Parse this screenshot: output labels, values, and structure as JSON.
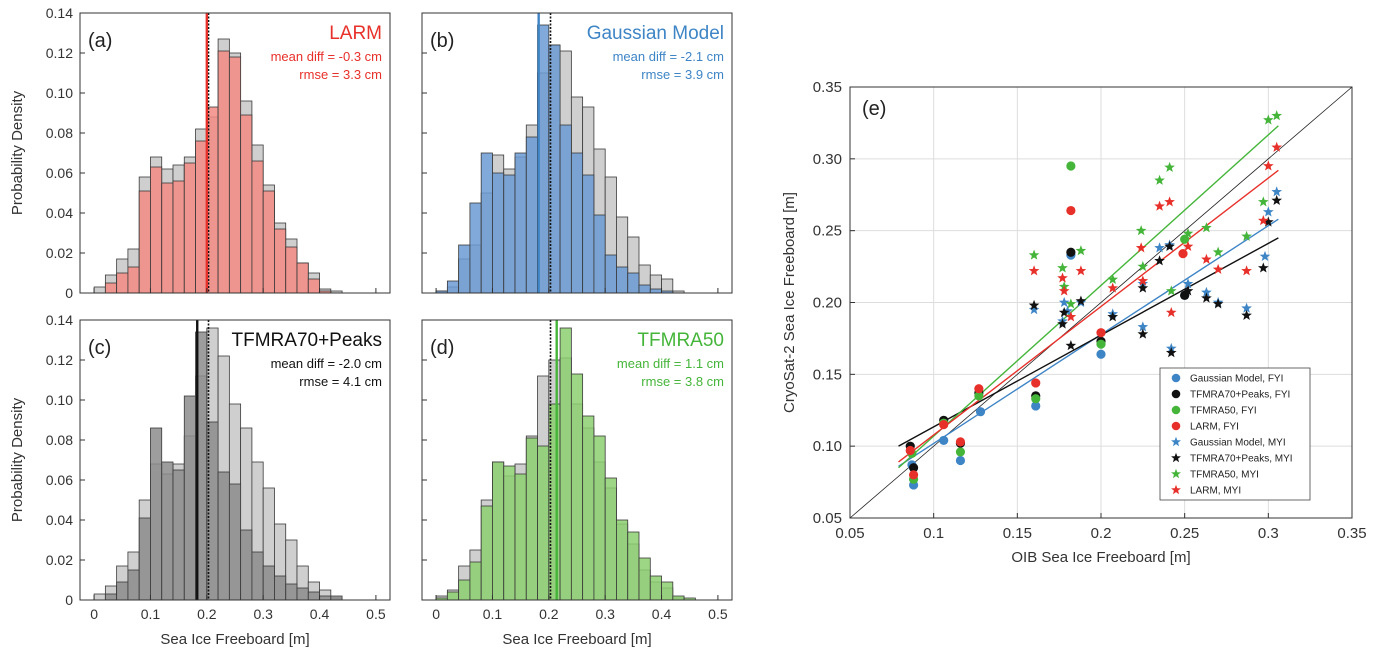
{
  "colors": {
    "red": "#e8302a",
    "red_fill": "#f28b82",
    "blue": "#3e85c6",
    "blue_fill": "#6b9bd4",
    "black": "#111111",
    "black_fill": "#8c8c8c",
    "green": "#45b53a",
    "green_fill": "#8ccf6e",
    "ref_fill": "#cfcfcf",
    "axis": "#333333",
    "grid": "#dddddd"
  },
  "chart_data": [
    {
      "id": "a",
      "type": "bar",
      "panel_label": "(a)",
      "method": "LARM",
      "mean_diff": "mean diff = -0.3 cm",
      "rmse": "rmse = 3.3 cm",
      "ylabel": "Probability Density",
      "xlabel": "",
      "xlim": [
        -0.025,
        0.525
      ],
      "ylim": [
        0,
        0.14
      ],
      "xticks": [
        "",
        "",
        "",
        "",
        "",
        ""
      ],
      "yticks": [
        "0",
        "0.02",
        "0.04",
        "0.06",
        "0.08",
        "0.10",
        "0.12",
        "0.14"
      ],
      "bin_edges": [
        0,
        0.02,
        0.04,
        0.06,
        0.08,
        0.1,
        0.12,
        0.14,
        0.16,
        0.18,
        0.2,
        0.22,
        0.24,
        0.26,
        0.28,
        0.3,
        0.32,
        0.34,
        0.36,
        0.38,
        0.4,
        0.42,
        0.44,
        0.46,
        0.48,
        0.5
      ],
      "reference_values": [
        0.003,
        0.009,
        0.017,
        0.022,
        0.058,
        0.068,
        0.062,
        0.064,
        0.068,
        0.082,
        0.088,
        0.127,
        0.12,
        0.096,
        0.074,
        0.054,
        0.035,
        0.027,
        0.015,
        0.01,
        0.002,
        0.001,
        0,
        0,
        0
      ],
      "method_values": [
        0,
        0.005,
        0.01,
        0.013,
        0.051,
        0.063,
        0.055,
        0.056,
        0.065,
        0.076,
        0.093,
        0.121,
        0.118,
        0.089,
        0.066,
        0.051,
        0.032,
        0.023,
        0.015,
        0.007,
        0.001,
        0,
        0,
        0,
        0
      ],
      "reference_mean": 0.203,
      "method_mean": 0.2,
      "color_key": "red",
      "fill_key": "red_fill"
    },
    {
      "id": "b",
      "type": "bar",
      "panel_label": "(b)",
      "method": "Gaussian Model",
      "mean_diff": "mean diff = -2.1 cm",
      "rmse": "rmse = 3.9 cm",
      "ylabel": "",
      "xlabel": "",
      "xlim": [
        -0.025,
        0.525
      ],
      "ylim": [
        0,
        0.14
      ],
      "xticks": [
        "",
        "",
        "",
        "",
        "",
        ""
      ],
      "yticks": [
        "",
        "",
        "",
        "",
        "",
        "",
        "",
        ""
      ],
      "bin_edges": [
        0,
        0.02,
        0.04,
        0.06,
        0.08,
        0.1,
        0.12,
        0.14,
        0.16,
        0.18,
        0.2,
        0.22,
        0.24,
        0.26,
        0.28,
        0.3,
        0.32,
        0.34,
        0.36,
        0.38,
        0.4,
        0.42,
        0.44,
        0.46,
        0.48,
        0.5
      ],
      "reference_values": [
        0.001,
        0.003,
        0.017,
        0.024,
        0.05,
        0.069,
        0.062,
        0.068,
        0.084,
        0.11,
        0.124,
        0.121,
        0.098,
        0.093,
        0.072,
        0.058,
        0.038,
        0.028,
        0.014,
        0.009,
        0.007,
        0.001,
        0,
        0,
        0
      ],
      "method_values": [
        0.001,
        0.006,
        0.024,
        0.045,
        0.07,
        0.06,
        0.059,
        0.07,
        0.078,
        0.134,
        0.124,
        0.084,
        0.07,
        0.059,
        0.039,
        0.019,
        0.013,
        0.01,
        0.004,
        0.002,
        0.001,
        0,
        0,
        0,
        0
      ],
      "reference_mean": 0.203,
      "method_mean": 0.182,
      "color_key": "blue",
      "fill_key": "blue_fill"
    },
    {
      "id": "c",
      "type": "bar",
      "panel_label": "(c)",
      "method": "TFMRA70+Peaks",
      "mean_diff": "mean diff = -2.0 cm",
      "rmse": "rmse = 4.1 cm",
      "ylabel": "Probability Density",
      "xlabel": "Sea Ice Freeboard [m]",
      "xlim": [
        -0.025,
        0.525
      ],
      "ylim": [
        0,
        0.14
      ],
      "xticks": [
        "0",
        "0.1",
        "0.2",
        "0.3",
        "0.4",
        "0.5"
      ],
      "yticks": [
        "0",
        "0.02",
        "0.04",
        "0.06",
        "0.08",
        "0.10",
        "0.12",
        "0.14"
      ],
      "bin_edges": [
        0,
        0.02,
        0.04,
        0.06,
        0.08,
        0.1,
        0.12,
        0.14,
        0.16,
        0.18,
        0.2,
        0.22,
        0.24,
        0.26,
        0.28,
        0.3,
        0.32,
        0.34,
        0.36,
        0.38,
        0.4,
        0.42,
        0.44,
        0.46,
        0.48,
        0.5
      ],
      "reference_values": [
        0.003,
        0.007,
        0.017,
        0.024,
        0.05,
        0.068,
        0.063,
        0.068,
        0.082,
        0.112,
        0.136,
        0.122,
        0.098,
        0.086,
        0.069,
        0.056,
        0.038,
        0.03,
        0.017,
        0.009,
        0.005,
        0.001,
        0,
        0,
        0
      ],
      "method_values": [
        0,
        0.003,
        0.009,
        0.015,
        0.041,
        0.086,
        0.069,
        0.065,
        0.102,
        0.134,
        0.089,
        0.064,
        0.058,
        0.035,
        0.024,
        0.017,
        0.012,
        0.008,
        0.006,
        0.004,
        0.002,
        0.002,
        0,
        0,
        0
      ],
      "reference_mean": 0.203,
      "method_mean": 0.183,
      "color_key": "black",
      "fill_key": "black_fill"
    },
    {
      "id": "d",
      "type": "bar",
      "panel_label": "(d)",
      "method": "TFMRA50",
      "mean_diff": "mean diff = 1.1 cm",
      "rmse": "rmse = 3.8 cm",
      "ylabel": "",
      "xlabel": "Sea Ice Freeboard [m]",
      "xlim": [
        -0.025,
        0.525
      ],
      "ylim": [
        0,
        0.14
      ],
      "xticks": [
        "0",
        "0.1",
        "0.2",
        "0.3",
        "0.4",
        "0.5"
      ],
      "yticks": [
        "",
        "",
        "",
        "",
        "",
        "",
        "",
        ""
      ],
      "bin_edges": [
        0,
        0.02,
        0.04,
        0.06,
        0.08,
        0.1,
        0.12,
        0.14,
        0.16,
        0.18,
        0.2,
        0.22,
        0.24,
        0.26,
        0.28,
        0.3,
        0.32,
        0.34,
        0.36,
        0.38,
        0.4,
        0.42,
        0.44,
        0.46,
        0.48,
        0.5
      ],
      "reference_values": [
        0.002,
        0.005,
        0.017,
        0.025,
        0.05,
        0.069,
        0.062,
        0.068,
        0.082,
        0.112,
        0.12,
        0.121,
        0.098,
        0.086,
        0.069,
        0.056,
        0.038,
        0.028,
        0.015,
        0.009,
        0.006,
        0.001,
        0,
        0,
        0
      ],
      "method_values": [
        0.001,
        0.004,
        0.01,
        0.019,
        0.047,
        0.069,
        0.067,
        0.063,
        0.081,
        0.077,
        0.098,
        0.136,
        0.113,
        0.092,
        0.082,
        0.061,
        0.04,
        0.034,
        0.021,
        0.012,
        0.009,
        0.002,
        0.001,
        0,
        0
      ],
      "reference_mean": 0.203,
      "method_mean": 0.214,
      "color_key": "green",
      "fill_key": "green_fill"
    },
    {
      "id": "e",
      "type": "scatter",
      "panel_label": "(e)",
      "xlabel": "OIB Sea Ice Freeboard [m]",
      "ylabel": "CryoSat-2 Sea Ice Freeboard [m]",
      "xlim": [
        0.05,
        0.35
      ],
      "ylim": [
        0.05,
        0.35
      ],
      "xticks": [
        "0.05",
        "0.1",
        "0.15",
        "0.2",
        "0.25",
        "0.3",
        "0.35"
      ],
      "yticks": [
        "0.05",
        "0.10",
        "0.15",
        "0.20",
        "0.25",
        "0.30",
        "0.35"
      ],
      "grid": true,
      "legend_position": "lower right",
      "one_to_one_line": true,
      "series": [
        {
          "name": "Gaussian Model, FYI",
          "marker": "circle",
          "color_key": "blue",
          "x": [
            0.087,
            0.088,
            0.106,
            0.116,
            0.128,
            0.161,
            0.182,
            0.2,
            0.25
          ],
          "y": [
            0.087,
            0.073,
            0.104,
            0.09,
            0.124,
            0.128,
            0.233,
            0.164,
            0.205
          ]
        },
        {
          "name": "TFMRA70+Peaks, FYI",
          "marker": "circle",
          "color_key": "black",
          "x": [
            0.086,
            0.088,
            0.106,
            0.116,
            0.127,
            0.161,
            0.182,
            0.2,
            0.25
          ],
          "y": [
            0.1,
            0.085,
            0.118,
            0.102,
            0.137,
            0.135,
            0.235,
            0.173,
            0.205
          ]
        },
        {
          "name": "TFMRA50, FYI",
          "marker": "circle",
          "color_key": "green",
          "x": [
            0.087,
            0.088,
            0.106,
            0.116,
            0.127,
            0.161,
            0.182,
            0.2,
            0.25
          ],
          "y": [
            0.095,
            0.077,
            0.116,
            0.096,
            0.135,
            0.133,
            0.295,
            0.171,
            0.244
          ]
        },
        {
          "name": " LARM, FYI",
          "marker": "circle",
          "color_key": "red",
          "x": [
            0.086,
            0.088,
            0.106,
            0.116,
            0.127,
            0.161,
            0.182,
            0.2,
            0.249
          ],
          "y": [
            0.097,
            0.08,
            0.115,
            0.103,
            0.14,
            0.144,
            0.264,
            0.179,
            0.234
          ]
        },
        {
          "name": "Gaussian Model, MYI",
          "marker": "star",
          "color_key": "blue",
          "x": [
            0.16,
            0.177,
            0.178,
            0.18,
            0.188,
            0.207,
            0.225,
            0.225,
            0.235,
            0.241,
            0.242,
            0.252,
            0.263,
            0.27,
            0.287,
            0.298,
            0.3,
            0.305
          ],
          "y": [
            0.195,
            0.187,
            0.2,
            0.194,
            0.2,
            0.192,
            0.213,
            0.183,
            0.238,
            0.24,
            0.168,
            0.213,
            0.207,
            0.2,
            0.196,
            0.232,
            0.263,
            0.277
          ]
        },
        {
          "name": "TFMRA70+Peaks, MYI",
          "marker": "star",
          "color_key": "black",
          "x": [
            0.16,
            0.177,
            0.178,
            0.182,
            0.188,
            0.207,
            0.225,
            0.225,
            0.235,
            0.241,
            0.242,
            0.252,
            0.263,
            0.27,
            0.287,
            0.297,
            0.3,
            0.305
          ],
          "y": [
            0.198,
            0.185,
            0.193,
            0.17,
            0.201,
            0.19,
            0.21,
            0.178,
            0.229,
            0.239,
            0.165,
            0.208,
            0.203,
            0.199,
            0.191,
            0.224,
            0.256,
            0.271
          ]
        },
        {
          "name": "TFMRA50, MYI",
          "marker": "star",
          "color_key": "green",
          "x": [
            0.16,
            0.177,
            0.178,
            0.182,
            0.188,
            0.207,
            0.224,
            0.225,
            0.235,
            0.241,
            0.242,
            0.252,
            0.263,
            0.27,
            0.287,
            0.297,
            0.3,
            0.305
          ],
          "y": [
            0.233,
            0.224,
            0.211,
            0.199,
            0.236,
            0.216,
            0.25,
            0.225,
            0.285,
            0.294,
            0.208,
            0.248,
            0.252,
            0.235,
            0.246,
            0.27,
            0.327,
            0.33
          ]
        },
        {
          "name": "LARM, MYI",
          "marker": "star",
          "color_key": "red",
          "x": [
            0.16,
            0.177,
            0.178,
            0.182,
            0.188,
            0.207,
            0.224,
            0.225,
            0.235,
            0.241,
            0.242,
            0.252,
            0.263,
            0.27,
            0.287,
            0.297,
            0.3,
            0.305
          ],
          "y": [
            0.222,
            0.217,
            0.208,
            0.19,
            0.222,
            0.21,
            0.238,
            0.215,
            0.267,
            0.27,
            0.193,
            0.239,
            0.23,
            0.223,
            0.222,
            0.257,
            0.295,
            0.308
          ]
        }
      ],
      "fit_lines": [
        {
          "color_key": "blue",
          "x": [
            0.079,
            0.306
          ],
          "y": [
            0.086,
            0.258
          ]
        },
        {
          "color_key": "black",
          "x": [
            0.079,
            0.306
          ],
          "y": [
            0.1,
            0.245
          ]
        },
        {
          "color_key": "green",
          "x": [
            0.079,
            0.306
          ],
          "y": [
            0.085,
            0.323
          ]
        },
        {
          "color_key": "red",
          "x": [
            0.079,
            0.306
          ],
          "y": [
            0.089,
            0.292
          ]
        }
      ]
    }
  ]
}
